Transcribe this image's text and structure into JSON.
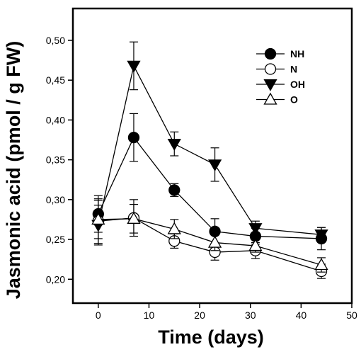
{
  "chart_data": {
    "type": "line",
    "xlabel": "Time (days)",
    "ylabel": "Jasmonic acid (pmol / g FW)",
    "xlim": [
      -5,
      50
    ],
    "ylim": [
      0.17,
      0.54
    ],
    "xticks": [
      0,
      10,
      20,
      30,
      40,
      50
    ],
    "yticks": [
      0.2,
      0.25,
      0.3,
      0.35,
      0.4,
      0.45,
      0.5
    ],
    "ytick_labels": [
      "0,20",
      "0,25",
      "0,30",
      "0,35",
      "0,40",
      "0,45",
      "0,50"
    ],
    "grid": false,
    "legend_position": "top-right",
    "x": [
      0,
      7,
      15,
      23,
      31,
      44
    ],
    "series": [
      {
        "name": "NH",
        "marker": "circle-filled",
        "values": [
          0.282,
          0.378,
          0.312,
          0.26,
          0.254,
          0.251
        ],
        "errors": [
          0.023,
          0.03,
          0.008,
          0.016,
          0.01,
          0.014
        ]
      },
      {
        "name": "N",
        "marker": "circle-open",
        "values": [
          0.273,
          0.277,
          0.248,
          0.234,
          0.236,
          0.21
        ],
        "errors": [
          0.028,
          0.023,
          0.009,
          0.01,
          0.01,
          0.009
        ]
      },
      {
        "name": "OH",
        "marker": "triangle-down-filled",
        "values": [
          0.268,
          0.468,
          0.37,
          0.344,
          0.264,
          0.256
        ],
        "errors": [
          0.025,
          0.03,
          0.015,
          0.021,
          0.009,
          0.009
        ]
      },
      {
        "name": "O",
        "marker": "triangle-up-open",
        "values": [
          0.275,
          0.276,
          0.263,
          0.246,
          0.242,
          0.218
        ],
        "errors": [
          0.024,
          0.018,
          0.012,
          0.01,
          0.008,
          0.009
        ]
      }
    ]
  }
}
